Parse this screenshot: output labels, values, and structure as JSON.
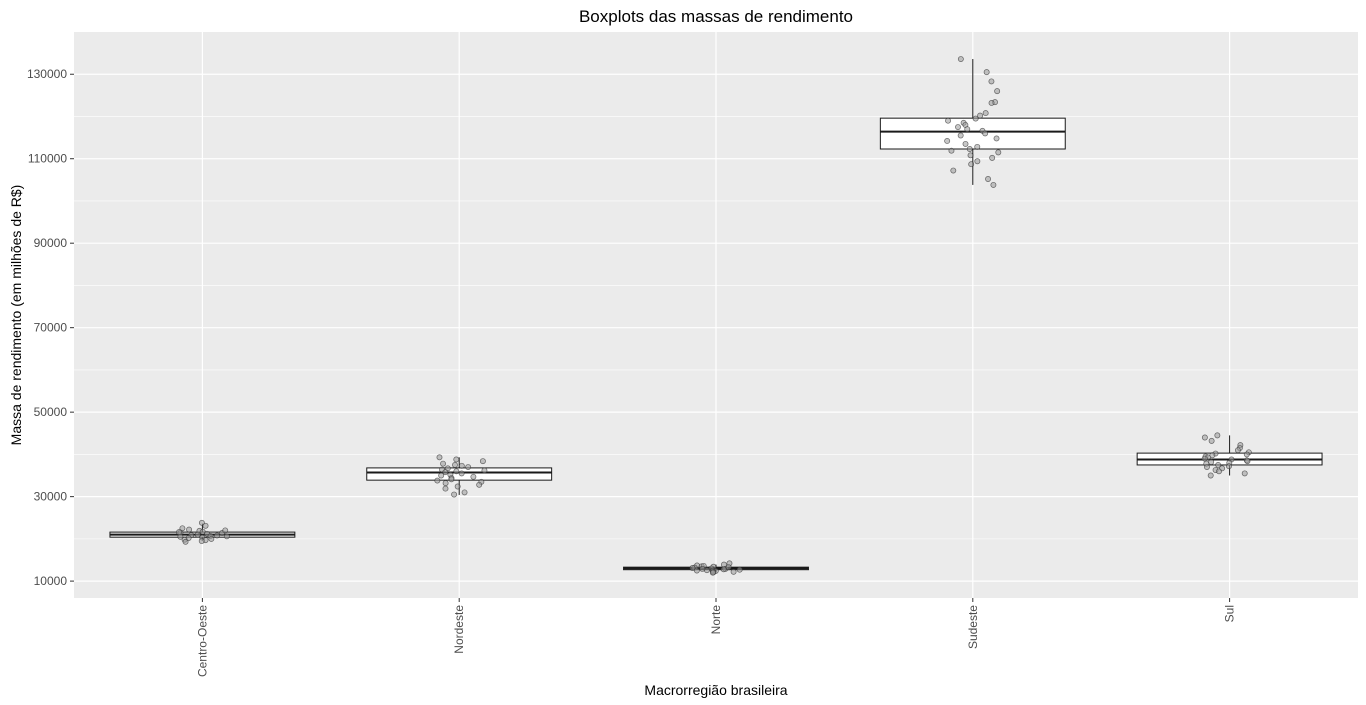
{
  "chart_data": {
    "type": "boxplot",
    "title": "Boxplots das massas de rendimento",
    "xlabel": "Macrorregião brasileira",
    "ylabel": "Massa de rendimento (em milhões de R$)",
    "ylim": [
      6000,
      140000
    ],
    "yticks": [
      10000,
      30000,
      50000,
      70000,
      90000,
      110000,
      130000
    ],
    "ytick_labels": [
      "10000",
      "30000",
      "50000",
      "70000",
      "90000",
      "110000",
      "130000"
    ],
    "grid": true,
    "background": "#ebebeb",
    "grid_color": "#ffffff",
    "point_color": "#999999",
    "categories": [
      "Centro-Oeste",
      "Nordeste",
      "Norte",
      "Sudeste",
      "Sul"
    ],
    "boxes": [
      {
        "category": "Centro-Oeste",
        "whisker_low": 19600,
        "q1": 20400,
        "median": 21000,
        "q3": 21600,
        "whisker_high": 23600
      },
      {
        "category": "Nordeste",
        "whisker_low": 30400,
        "q1": 33900,
        "median": 35700,
        "q3": 36800,
        "whisker_high": 39300
      },
      {
        "category": "Norte",
        "whisker_low": 12200,
        "q1": 12700,
        "median": 13000,
        "q3": 13300,
        "whisker_high": 13900
      },
      {
        "category": "Sudeste",
        "whisker_low": 103800,
        "q1": 112300,
        "median": 116400,
        "q3": 119600,
        "whisker_high": 133600
      },
      {
        "category": "Sul",
        "whisker_low": 35000,
        "q1": 37500,
        "median": 38800,
        "q3": 40300,
        "whisker_high": 44500
      }
    ],
    "points": [
      {
        "category": "Centro-Oeste",
        "values": [
          23800,
          23100,
          22500,
          22200,
          21900,
          21700,
          21500,
          21400,
          21200,
          21000,
          20900,
          20800,
          20700,
          20500,
          20300,
          20200,
          20000,
          19800,
          19700,
          19500,
          19300,
          21600,
          22000,
          20600
        ]
      },
      {
        "category": "Nordeste",
        "values": [
          39300,
          38800,
          38400,
          37800,
          37500,
          37300,
          37000,
          36700,
          36400,
          36200,
          36000,
          35800,
          35500,
          35200,
          35000,
          34700,
          34400,
          34100,
          33800,
          33500,
          33200,
          32800,
          32400,
          31900,
          31000,
          30500
        ]
      },
      {
        "category": "Norte",
        "values": [
          14200,
          13900,
          13700,
          13500,
          13400,
          13200,
          13100,
          13000,
          12900,
          12800,
          12700,
          12600,
          12500,
          12400,
          12300,
          12200,
          12100,
          12000,
          13600,
          12900,
          13300,
          12500
        ]
      },
      {
        "category": "Sudeste",
        "values": [
          133600,
          130500,
          128300,
          126000,
          123400,
          123200,
          120800,
          120200,
          119500,
          119000,
          118500,
          118000,
          117500,
          117000,
          116600,
          116000,
          115500,
          114800,
          114200,
          113500,
          112800,
          112300,
          111900,
          111500,
          110800,
          110200,
          109400,
          108700,
          107200,
          105200,
          103800
        ]
      },
      {
        "category": "Sul",
        "values": [
          44500,
          44000,
          43200,
          42200,
          41500,
          41000,
          40500,
          40200,
          40000,
          39800,
          39500,
          39300,
          39000,
          38800,
          38600,
          38400,
          38200,
          38000,
          37800,
          37500,
          37200,
          37000,
          36700,
          36300,
          36000,
          35500,
          35000
        ]
      }
    ]
  }
}
